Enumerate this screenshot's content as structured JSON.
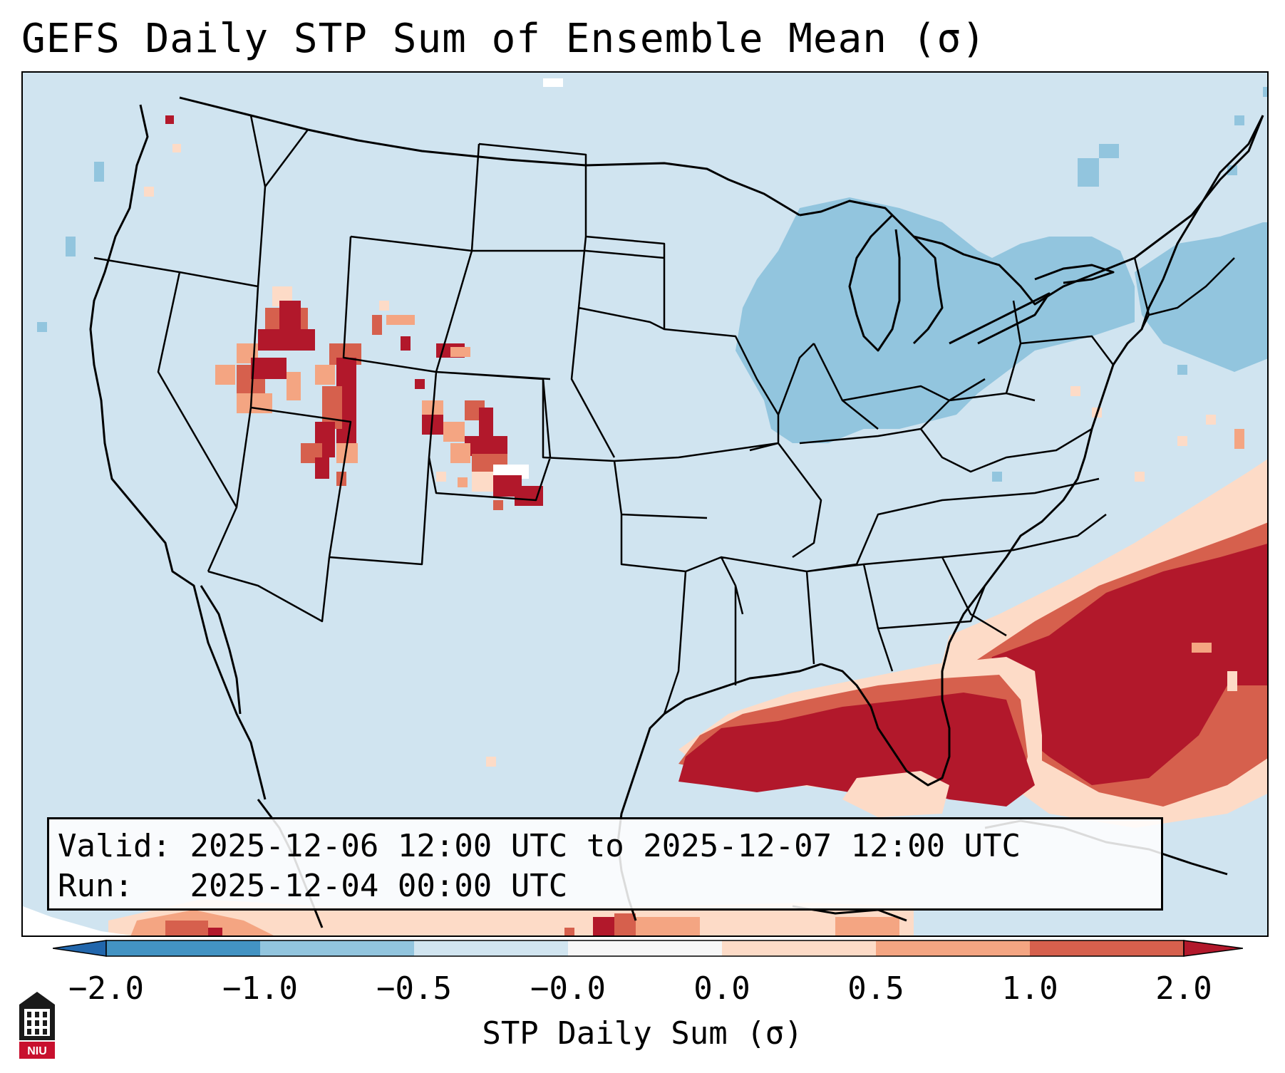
{
  "title": "GEFS Daily STP Sum of Ensemble Mean (σ)",
  "info": {
    "valid_label": "Valid:",
    "valid_value": "2025-12-06 12:00 UTC to 2025-12-07 12:00 UTC",
    "run_label": "Run:",
    "run_value": "2025-12-04 00:00 UTC"
  },
  "colorbar": {
    "label": "STP Daily Sum (σ)",
    "ticks": [
      "−2.0",
      "−1.0",
      "−0.5",
      "−0.0",
      "0.0",
      "0.5",
      "1.0",
      "2.0"
    ],
    "colors": [
      "#4393c3",
      "#92c5de",
      "#d1e5f0",
      "#f7f7f7",
      "#fddbc7",
      "#f4a582",
      "#d6604d",
      "#b2182b"
    ],
    "extend_low": "#2166ac",
    "extend_high": "#b2182b"
  },
  "map": {
    "projection": "Lambert conformal CONUS",
    "background": "#d0e4f0",
    "regions": [
      {
        "name": "Northern Rockies / Idaho-Utah",
        "value": 2.0
      },
      {
        "name": "Colorado Front Range",
        "value": 2.0
      },
      {
        "name": "Gulf of Mexico",
        "value": 2.0
      },
      {
        "name": "Western Atlantic off Southeast coast",
        "value": 2.0
      },
      {
        "name": "Great Lakes",
        "value": -0.75
      },
      {
        "name": "New England",
        "value": -0.75
      }
    ]
  },
  "logo": {
    "text": "NIU"
  }
}
